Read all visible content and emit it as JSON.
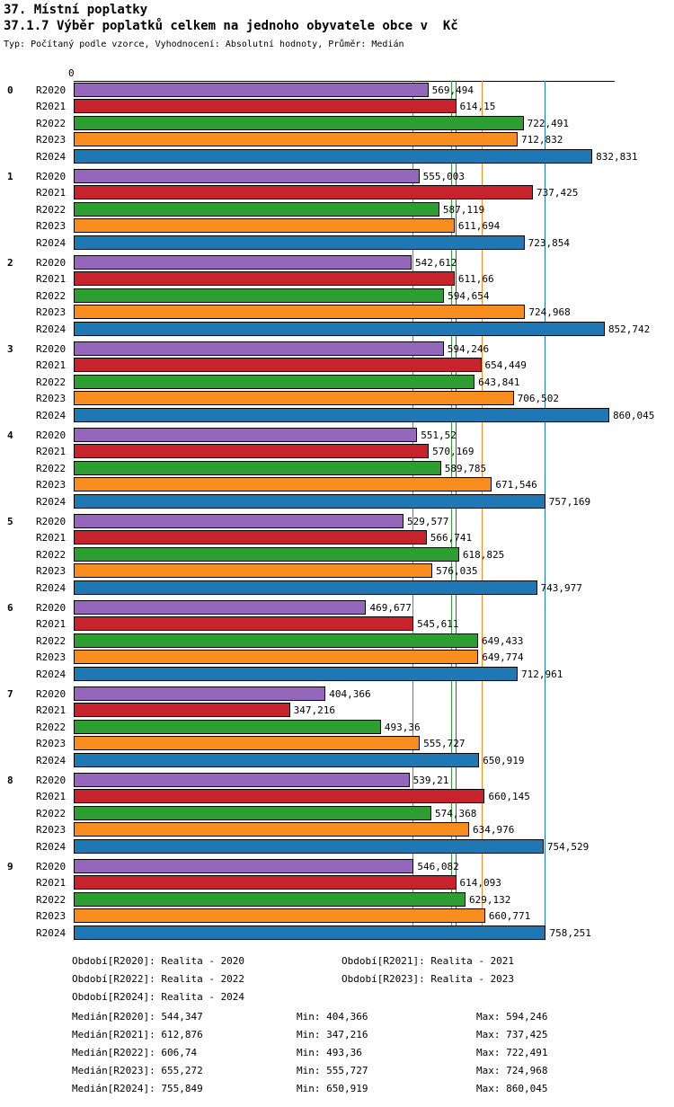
{
  "header": {
    "title": "37. Místní poplatky",
    "subtitle": "37.1.7 Výběr poplatků celkem na jednoho obyvatele obce v  Kč",
    "meta": "Typ: Počítaný podle vzorce, Vyhodnocení: Absolutní hodnoty, Průměr: Medián"
  },
  "chart_data": {
    "type": "bar",
    "orientation": "horizontal",
    "unit": "Kč",
    "x_axis_zero_label": "0",
    "xlim": [
      0,
      880
    ],
    "grid": "median-lines-per-series",
    "categories": [
      "0",
      "1",
      "2",
      "3",
      "4",
      "5",
      "6",
      "7",
      "8",
      "9"
    ],
    "series": [
      {
        "name": "R2020",
        "color": "#9467bd",
        "values": [
          569.494,
          555.003,
          542.612,
          594.246,
          551.52,
          529.577,
          469.677,
          404.366,
          539.21,
          546.082
        ]
      },
      {
        "name": "R2021",
        "color": "#c8232d",
        "values": [
          614.15,
          737.425,
          611.66,
          654.449,
          570.169,
          566.741,
          545.611,
          347.216,
          660.145,
          614.093
        ]
      },
      {
        "name": "R2022",
        "color": "#2e9e33",
        "values": [
          722.491,
          587.119,
          594.654,
          643.841,
          589.785,
          618.825,
          649.433,
          493.36,
          574.368,
          629.132
        ]
      },
      {
        "name": "R2023",
        "color": "#f78c1f",
        "values": [
          712.832,
          611.694,
          724.968,
          706.502,
          671.546,
          576.035,
          649.774,
          555.727,
          634.976,
          660.771
        ]
      },
      {
        "name": "R2024",
        "color": "#1f77b4",
        "values": [
          832.831,
          723.854,
          852.742,
          860.045,
          757.169,
          743.977,
          712.961,
          650.919,
          754.529,
          758.251
        ]
      }
    ]
  },
  "footer": {
    "legend": {
      "items": [
        "Období[R2020]: Realita - 2020",
        "Období[R2021]: Realita - 2021",
        "Období[R2022]: Realita - 2022",
        "Období[R2023]: Realita - 2023",
        "Období[R2024]: Realita - 2024"
      ]
    },
    "stats": {
      "min_label": "Min:",
      "max_label": "Max:",
      "rows": [
        {
          "label": "Medián[R2020]:",
          "median": 544.347,
          "min": 404.366,
          "max": 594.246
        },
        {
          "label": "Medián[R2021]:",
          "median": 612.876,
          "min": 347.216,
          "max": 737.425
        },
        {
          "label": "Medián[R2022]:",
          "median": 606.74,
          "min": 493.36,
          "max": 722.491
        },
        {
          "label": "Medián[R2023]:",
          "median": 655.272,
          "min": 555.727,
          "max": 724.968
        },
        {
          "label": "Medián[R2024]:",
          "median": 755.849,
          "min": 650.919,
          "max": 860.045
        }
      ]
    }
  }
}
